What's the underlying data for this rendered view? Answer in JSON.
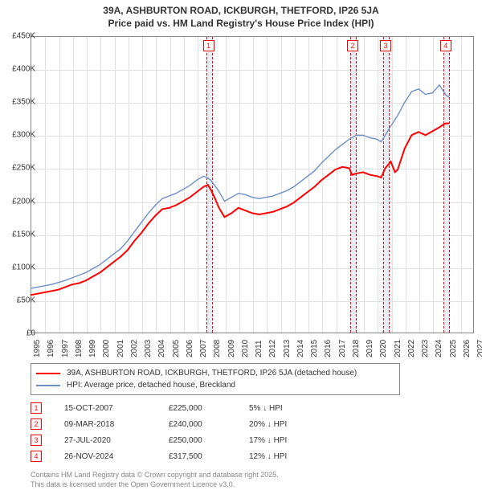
{
  "title_line1": "39A, ASHBURTON ROAD, ICKBURGH, THETFORD, IP26 5JA",
  "title_line2": "Price paid vs. HM Land Registry's House Price Index (HPI)",
  "chart": {
    "type": "line",
    "background_color": "#ffffff",
    "grid_color": "#e0e0e0",
    "border_color": "#888888",
    "marker_band_color": "#e6eef7",
    "marker_dash_color": "#ff0000",
    "x": {
      "min": 1995,
      "max": 2027,
      "tick_step": 1
    },
    "y": {
      "min": 0,
      "max": 450000,
      "tick_step": 50000,
      "prefix": "£",
      "suffix": "K",
      "divisor": 1000
    },
    "series": [
      {
        "name": "39A, ASHBURTON ROAD, ICKBURGH, THETFORD, IP26 5JA (detached house)",
        "color": "#ff0000",
        "width": 2,
        "data": [
          [
            1995.0,
            58000
          ],
          [
            1995.5,
            60000
          ],
          [
            1996.0,
            62000
          ],
          [
            1996.5,
            64000
          ],
          [
            1997.0,
            66000
          ],
          [
            1997.5,
            70000
          ],
          [
            1998.0,
            74000
          ],
          [
            1998.5,
            76000
          ],
          [
            1999.0,
            80000
          ],
          [
            1999.5,
            86000
          ],
          [
            2000.0,
            92000
          ],
          [
            2000.5,
            100000
          ],
          [
            2001.0,
            108000
          ],
          [
            2001.5,
            116000
          ],
          [
            2002.0,
            126000
          ],
          [
            2002.5,
            140000
          ],
          [
            2003.0,
            152000
          ],
          [
            2003.5,
            166000
          ],
          [
            2004.0,
            178000
          ],
          [
            2004.5,
            188000
          ],
          [
            2005.0,
            190000
          ],
          [
            2005.5,
            194000
          ],
          [
            2006.0,
            200000
          ],
          [
            2006.5,
            206000
          ],
          [
            2007.0,
            214000
          ],
          [
            2007.5,
            222000
          ],
          [
            2007.8,
            225000
          ],
          [
            2008.0,
            218000
          ],
          [
            2008.3,
            205000
          ],
          [
            2008.6,
            190000
          ],
          [
            2009.0,
            176000
          ],
          [
            2009.5,
            182000
          ],
          [
            2010.0,
            190000
          ],
          [
            2010.5,
            186000
          ],
          [
            2011.0,
            182000
          ],
          [
            2011.5,
            180000
          ],
          [
            2012.0,
            182000
          ],
          [
            2012.5,
            184000
          ],
          [
            2013.0,
            188000
          ],
          [
            2013.5,
            192000
          ],
          [
            2014.0,
            198000
          ],
          [
            2014.5,
            206000
          ],
          [
            2015.0,
            214000
          ],
          [
            2015.5,
            222000
          ],
          [
            2016.0,
            232000
          ],
          [
            2016.5,
            240000
          ],
          [
            2017.0,
            248000
          ],
          [
            2017.5,
            252000
          ],
          [
            2018.0,
            250000
          ],
          [
            2018.2,
            240000
          ],
          [
            2018.5,
            242000
          ],
          [
            2019.0,
            244000
          ],
          [
            2019.5,
            240000
          ],
          [
            2020.0,
            238000
          ],
          [
            2020.3,
            236000
          ],
          [
            2020.6,
            250000
          ],
          [
            2021.0,
            260000
          ],
          [
            2021.3,
            244000
          ],
          [
            2021.5,
            248000
          ],
          [
            2022.0,
            280000
          ],
          [
            2022.5,
            300000
          ],
          [
            2023.0,
            305000
          ],
          [
            2023.5,
            300000
          ],
          [
            2024.0,
            306000
          ],
          [
            2024.5,
            312000
          ],
          [
            2024.9,
            317500
          ],
          [
            2025.2,
            318000
          ]
        ]
      },
      {
        "name": "HPI: Average price, detached house, Breckland",
        "color": "#6b8fc7",
        "width": 1.4,
        "data": [
          [
            1995.0,
            68000
          ],
          [
            1995.5,
            70000
          ],
          [
            1996.0,
            72000
          ],
          [
            1996.5,
            74000
          ],
          [
            1997.0,
            77000
          ],
          [
            1997.5,
            80000
          ],
          [
            1998.0,
            84000
          ],
          [
            1998.5,
            88000
          ],
          [
            1999.0,
            92000
          ],
          [
            1999.5,
            98000
          ],
          [
            2000.0,
            104000
          ],
          [
            2000.5,
            112000
          ],
          [
            2001.0,
            120000
          ],
          [
            2001.5,
            128000
          ],
          [
            2002.0,
            140000
          ],
          [
            2002.5,
            154000
          ],
          [
            2003.0,
            168000
          ],
          [
            2003.5,
            182000
          ],
          [
            2004.0,
            194000
          ],
          [
            2004.5,
            204000
          ],
          [
            2005.0,
            208000
          ],
          [
            2005.5,
            212000
          ],
          [
            2006.0,
            218000
          ],
          [
            2006.5,
            224000
          ],
          [
            2007.0,
            232000
          ],
          [
            2007.5,
            238000
          ],
          [
            2007.8,
            235000
          ],
          [
            2008.0,
            232000
          ],
          [
            2008.5,
            218000
          ],
          [
            2009.0,
            200000
          ],
          [
            2009.5,
            206000
          ],
          [
            2010.0,
            212000
          ],
          [
            2010.5,
            210000
          ],
          [
            2011.0,
            206000
          ],
          [
            2011.5,
            204000
          ],
          [
            2012.0,
            206000
          ],
          [
            2012.5,
            208000
          ],
          [
            2013.0,
            212000
          ],
          [
            2013.5,
            216000
          ],
          [
            2014.0,
            222000
          ],
          [
            2014.5,
            230000
          ],
          [
            2015.0,
            238000
          ],
          [
            2015.5,
            246000
          ],
          [
            2016.0,
            258000
          ],
          [
            2016.5,
            268000
          ],
          [
            2017.0,
            278000
          ],
          [
            2017.5,
            286000
          ],
          [
            2018.0,
            294000
          ],
          [
            2018.5,
            300000
          ],
          [
            2019.0,
            300000
          ],
          [
            2019.5,
            296000
          ],
          [
            2020.0,
            294000
          ],
          [
            2020.3,
            290000
          ],
          [
            2020.6,
            300000
          ],
          [
            2021.0,
            314000
          ],
          [
            2021.5,
            330000
          ],
          [
            2022.0,
            350000
          ],
          [
            2022.5,
            366000
          ],
          [
            2023.0,
            370000
          ],
          [
            2023.5,
            362000
          ],
          [
            2024.0,
            364000
          ],
          [
            2024.5,
            376000
          ],
          [
            2025.0,
            360000
          ],
          [
            2025.2,
            358000
          ]
        ]
      }
    ],
    "sale_markers": [
      {
        "n": "1",
        "x": 2007.79
      },
      {
        "n": "2",
        "x": 2018.19
      },
      {
        "n": "3",
        "x": 2020.57
      },
      {
        "n": "4",
        "x": 2024.9
      }
    ]
  },
  "sales": [
    {
      "n": "1",
      "date": "15-OCT-2007",
      "price": "£225,000",
      "diff": "5% ↓ HPI"
    },
    {
      "n": "2",
      "date": "09-MAR-2018",
      "price": "£240,000",
      "diff": "20% ↓ HPI"
    },
    {
      "n": "3",
      "date": "27-JUL-2020",
      "price": "£250,000",
      "diff": "17% ↓ HPI"
    },
    {
      "n": "4",
      "date": "26-NOV-2024",
      "price": "£317,500",
      "diff": "12% ↓ HPI"
    }
  ],
  "footnote_line1": "Contains HM Land Registry data © Crown copyright and database right 2025.",
  "footnote_line2": "This data is licensed under the Open Government Licence v3.0."
}
